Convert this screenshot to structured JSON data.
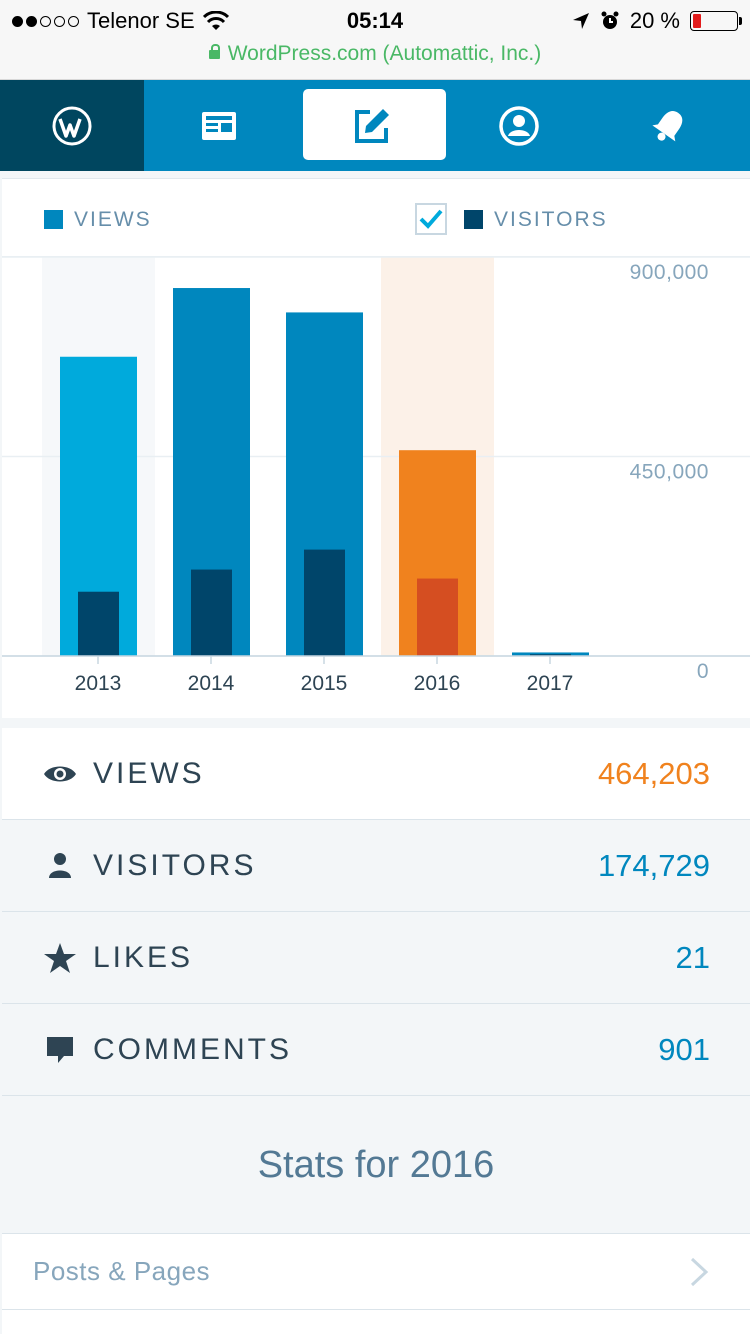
{
  "status_bar": {
    "carrier": "Telenor SE",
    "time": "05:14",
    "battery": "20 %",
    "battery_level": 0.2,
    "url": "WordPress.com (Automattic, Inc.)"
  },
  "nav": {
    "tabs": [
      {
        "name": "wordpress-logo",
        "icon": "wordpress-icon"
      },
      {
        "name": "reader",
        "icon": "reader-icon"
      },
      {
        "name": "write",
        "icon": "pencil-square-icon",
        "active": true
      },
      {
        "name": "me",
        "icon": "user-circle-icon"
      },
      {
        "name": "notifications",
        "icon": "bell-icon"
      }
    ]
  },
  "legend": {
    "views_label": "VIEWS",
    "visitors_label": "VISITORS",
    "visitors_checked": true
  },
  "chart_data": {
    "type": "bar",
    "categories": [
      "2013",
      "2014",
      "2015",
      "2016",
      "2017"
    ],
    "series": [
      {
        "name": "VIEWS",
        "values": [
          675000,
          830000,
          775000,
          464203,
          8000
        ]
      },
      {
        "name": "VISITORS",
        "values": [
          145000,
          195000,
          240000,
          174729,
          4000
        ]
      }
    ],
    "ylim": [
      0,
      900000
    ],
    "yticks": [
      "900,000",
      "450,000",
      "0"
    ],
    "ytick_values": [
      900000,
      450000,
      0
    ],
    "selected_index": 3,
    "hover_index": 0,
    "colors": {
      "views": "#0087be",
      "views_hover": "#00aadc",
      "visitors": "#00456a",
      "selected_views": "#f0821e",
      "selected_visitors": "#d54e21",
      "selected_bg": "#fcf1e8",
      "hover_bg": "#f6f8fa"
    }
  },
  "stats": [
    {
      "label": "VIEWS",
      "value": "464,203",
      "icon": "eye-icon"
    },
    {
      "label": "VISITORS",
      "value": "174,729",
      "icon": "person-icon"
    },
    {
      "label": "LIKES",
      "value": "21",
      "icon": "star-icon"
    },
    {
      "label": "COMMENTS",
      "value": "901",
      "icon": "comment-icon"
    }
  ],
  "stats_title": "Stats for 2016",
  "posts_pages_label": "Posts & Pages"
}
